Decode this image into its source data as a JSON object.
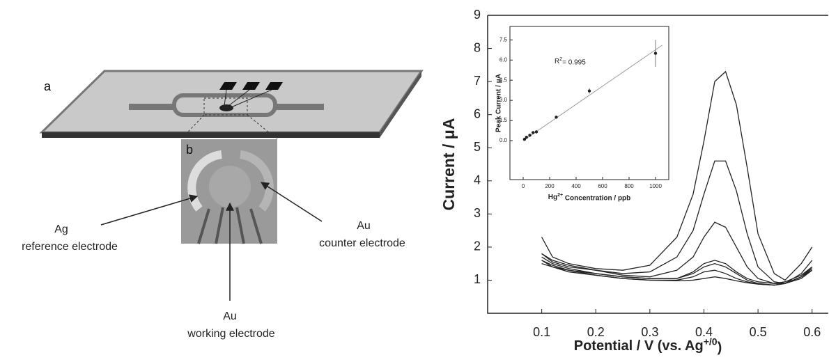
{
  "diagram": {
    "panel_a": "a",
    "panel_b": "b",
    "labels": [
      {
        "line1": "Ag",
        "line2": "reference electrode"
      },
      {
        "line1": "Au",
        "line2": "counter electrode"
      },
      {
        "line1": "Au",
        "line2": "working electrode"
      }
    ]
  },
  "chart_data": [
    {
      "type": "line",
      "y_label": "Current / μA",
      "x_label": {
        "text": "Potential / V (vs. Ag",
        "sup": "+/0",
        "end": ")"
      },
      "xlim": [
        0,
        0.63
      ],
      "ylim": [
        0,
        9
      ],
      "xticks": [
        0.1,
        0.2,
        0.3,
        0.4,
        0.5,
        0.6
      ],
      "yticks": [
        1,
        2,
        3,
        4,
        5,
        6,
        7,
        8,
        9
      ],
      "x": [
        0.1,
        0.12,
        0.15,
        0.2,
        0.25,
        0.3,
        0.35,
        0.38,
        0.4,
        0.42,
        0.44,
        0.46,
        0.48,
        0.5,
        0.53,
        0.55,
        0.58,
        0.6
      ],
      "series": [
        {
          "color": "#222",
          "values": [
            2.3,
            1.7,
            1.5,
            1.35,
            1.3,
            1.45,
            2.3,
            3.6,
            5.2,
            7.0,
            7.3,
            6.3,
            4.4,
            2.4,
            1.2,
            1.0,
            1.5,
            2.0
          ]
        },
        {
          "color": "#222",
          "values": [
            1.8,
            1.6,
            1.45,
            1.3,
            1.2,
            1.25,
            1.7,
            2.5,
            3.6,
            4.6,
            4.6,
            3.7,
            2.4,
            1.4,
            0.95,
            0.9,
            1.2,
            1.6
          ]
        },
        {
          "color": "#222",
          "values": [
            1.8,
            1.55,
            1.4,
            1.3,
            1.15,
            1.1,
            1.3,
            1.7,
            2.3,
            2.75,
            2.6,
            2.0,
            1.4,
            1.05,
            0.9,
            0.9,
            1.1,
            1.4
          ]
        },
        {
          "color": "#222",
          "values": [
            1.7,
            1.5,
            1.35,
            1.2,
            1.1,
            1.05,
            1.05,
            1.25,
            1.5,
            1.6,
            1.5,
            1.25,
            1.05,
            0.95,
            0.9,
            0.95,
            1.15,
            1.4
          ]
        },
        {
          "color": "#222",
          "values": [
            1.6,
            1.45,
            1.3,
            1.2,
            1.1,
            1.05,
            1.05,
            1.2,
            1.4,
            1.5,
            1.4,
            1.2,
            1.0,
            0.9,
            0.85,
            0.9,
            1.1,
            1.35
          ]
        },
        {
          "color": "#222",
          "values": [
            1.6,
            1.4,
            1.3,
            1.15,
            1.05,
            1.0,
            1.0,
            1.1,
            1.25,
            1.3,
            1.2,
            1.05,
            0.95,
            0.88,
            0.85,
            0.9,
            1.1,
            1.3
          ]
        },
        {
          "color": "#222",
          "values": [
            1.5,
            1.4,
            1.25,
            1.15,
            1.05,
            1.0,
            0.98,
            1.0,
            1.05,
            1.1,
            1.05,
            0.98,
            0.92,
            0.88,
            0.85,
            0.9,
            1.05,
            1.3
          ]
        }
      ]
    },
    {
      "type": "scatter",
      "y_label": "Peak Current / μA",
      "x_label": {
        "pre": "Hg",
        "sup": "2+",
        "text": " Concentration / ppb"
      },
      "annotation": {
        "text": "R",
        "sup": "2",
        "end": "= 0.995"
      },
      "xlim": [
        -100,
        1100
      ],
      "ylim": [
        -2.9,
        8.5
      ],
      "xticks": [
        0,
        200,
        400,
        600,
        800,
        1000
      ],
      "yticks": [
        {
          "value": 0,
          "label": "0.0"
        },
        1.5,
        {
          "value": 3,
          "label": "3.0"
        },
        4.5,
        {
          "value": 6,
          "label": "6.0"
        },
        7.5
      ],
      "x": [
        10,
        25,
        50,
        75,
        100,
        250,
        500,
        1000
      ],
      "values": [
        0.1,
        0.25,
        0.4,
        0.6,
        0.65,
        1.75,
        3.7,
        6.5
      ],
      "errors": [
        null,
        null,
        null,
        null,
        null,
        null,
        0.2,
        1.0
      ],
      "color": "#222",
      "fit": {
        "x": [
          0,
          1050
        ],
        "values": [
          0,
          7.1
        ],
        "color": "#999"
      }
    }
  ]
}
